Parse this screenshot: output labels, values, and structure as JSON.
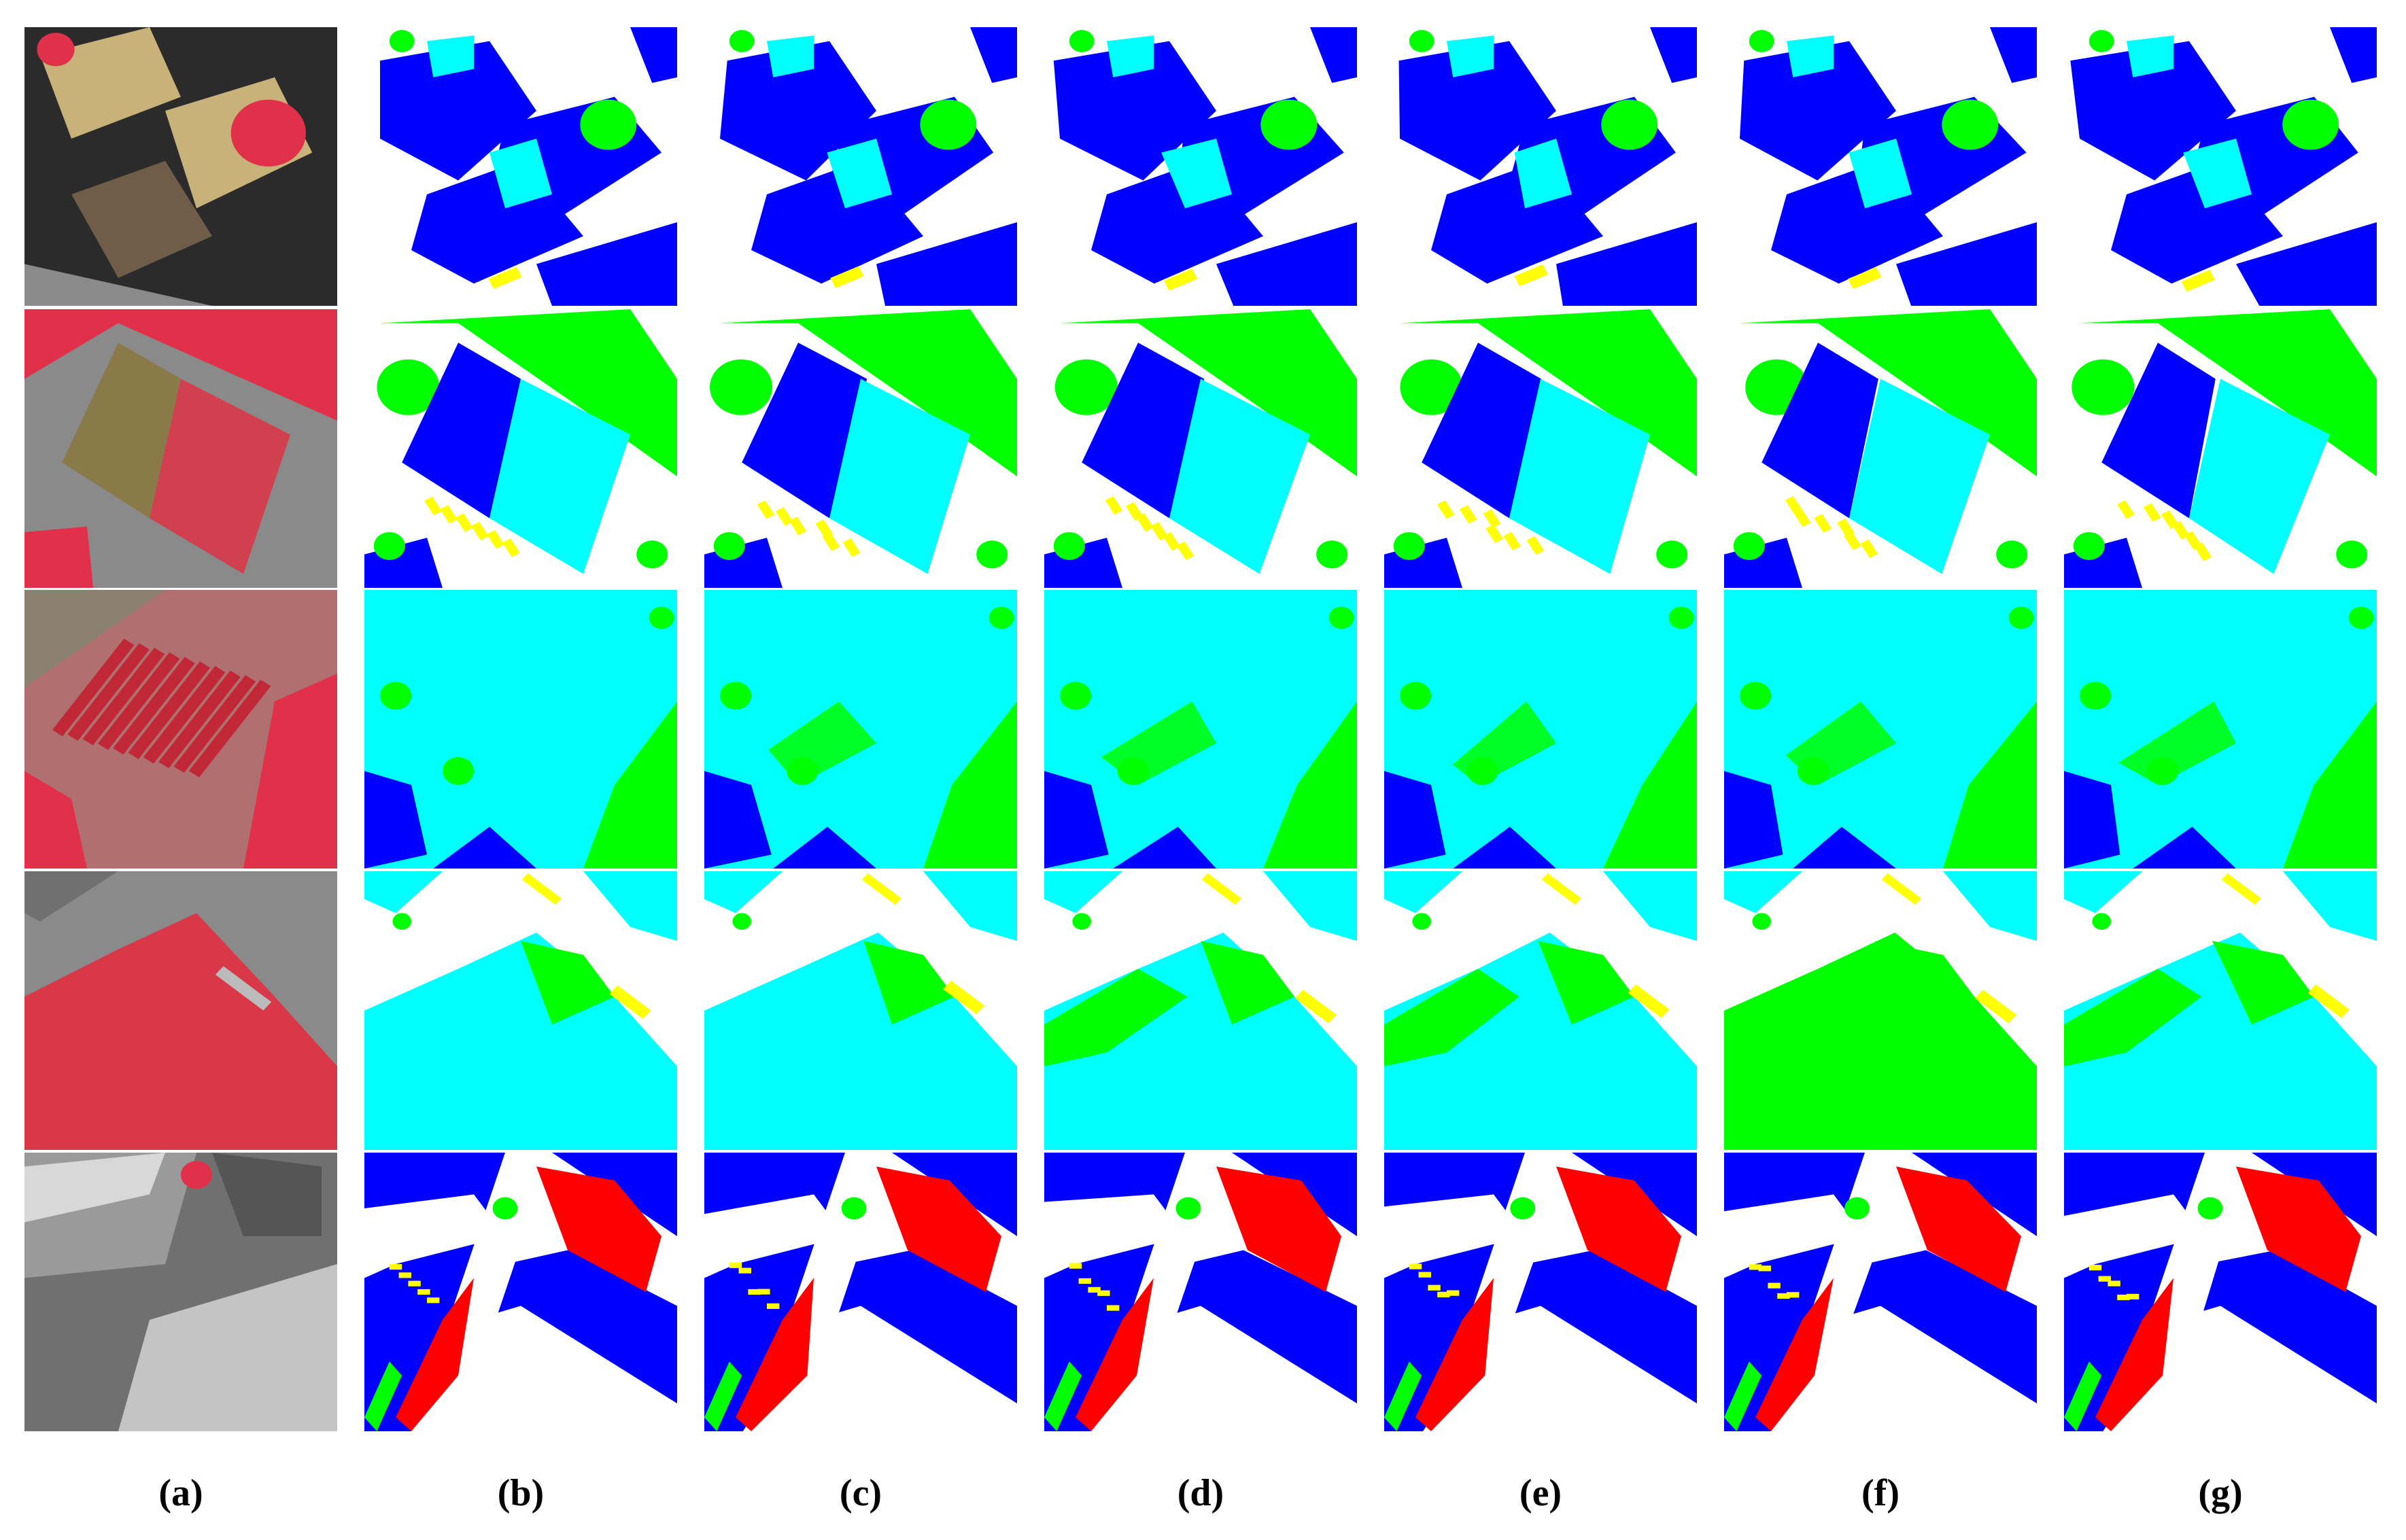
{
  "figure": {
    "column_labels": [
      "(a)",
      "(b)",
      "(c)",
      "(d)",
      "(e)",
      "(f)",
      "(g)"
    ],
    "rows": 5,
    "class_colors": {
      "impervious_surface": "#ffffff",
      "building": "#0000ff",
      "low_vegetation": "#00ffff",
      "tree": "#00ff00",
      "car": "#ffff00",
      "clutter": "#ff0000"
    },
    "image_colors": {
      "vegetation_ir": "#e0304a",
      "roof": "#c9b27a",
      "road": "#8a8a8a",
      "shadow": "#2b2b2b"
    }
  }
}
